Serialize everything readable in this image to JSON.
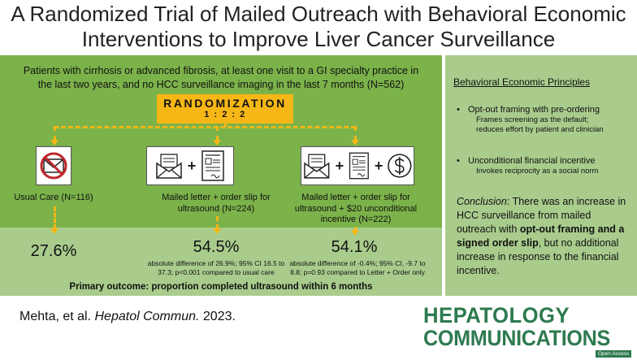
{
  "title": {
    "line1": "A Randomized Trial of Mailed Outreach with Behavioral Economic",
    "line2": "Interventions to Improve Liver Cancer Surveillance"
  },
  "eligibility": {
    "line1": "Patients with cirrhosis or advanced fibrosis, at least one visit to a GI specialty practice in",
    "line2": "the last two years, and no HCC surveillance imaging in the last 7 months (N=562)"
  },
  "randomization": {
    "label": "RANDOMIZATION",
    "ratio": "1 : 2 : 2"
  },
  "arms": [
    {
      "label_line1": "Usual Care (N=116)",
      "label_line2": "",
      "label_line3": "",
      "result": "27.6%",
      "note_line1": "",
      "note_line2": "",
      "icons": [
        "no-mail-icon"
      ]
    },
    {
      "label_line1": "Mailed letter + order slip for",
      "label_line2": "ultrasound (N=224)",
      "label_line3": "",
      "result": "54.5%",
      "note_line1": "absolute difference of 26.9%; 95% CI 16.5 to",
      "note_line2": "37.3; p<0.001 compared to usual care",
      "icons": [
        "letter-icon",
        "order-slip-icon"
      ]
    },
    {
      "label_line1": "Mailed letter + order slip for",
      "label_line2": "ultrasound + $20 unconditional",
      "label_line3": "incentive (N=222)",
      "result": "54.1%",
      "note_line1": "absolute difference of -0.4%; 95% CI, -9.7 to",
      "note_line2": "8.8; p=0.93 compared to Letter + Order only",
      "icons": [
        "letter-icon",
        "order-slip-icon",
        "dollar-icon"
      ]
    }
  ],
  "plus_sign": "+",
  "primary_outcome": "Primary outcome: proportion completed ultrasound within 6 months",
  "principles": {
    "title": "Behavioral Economic Principles",
    "bullet": "•",
    "items": [
      {
        "head": "Opt-out framing with pre-ordering",
        "desc_line1": "Frames screening as the default;",
        "desc_line2": "reduces effort by patient and clinician"
      },
      {
        "head": "Unconditional financial incentive",
        "desc_line1": "Invokes reciprocity as a social norm",
        "desc_line2": ""
      }
    ]
  },
  "conclusion": {
    "label": "Conclusion",
    "text1": ": There was an increase in HCC surveillance from mailed outreach with ",
    "bold": "opt-out framing and a signed order slip",
    "text2": ", but no additional increase in response to the financial incentive."
  },
  "citation": {
    "authors": "Mehta, et al. ",
    "journal": "Hepatol Commun.",
    "year": " 2023."
  },
  "journal_logo": {
    "line1": "HEPATOLOGY",
    "line2": "COMMUNICATIONS",
    "badge": "Open Access"
  },
  "colors": {
    "panel_green": "#7bb24a",
    "light_green": "#a9cc8d",
    "randomization_yellow": "#f6b716",
    "journal_green": "#2d7a4f",
    "prohibition_red": "#c0262d"
  }
}
